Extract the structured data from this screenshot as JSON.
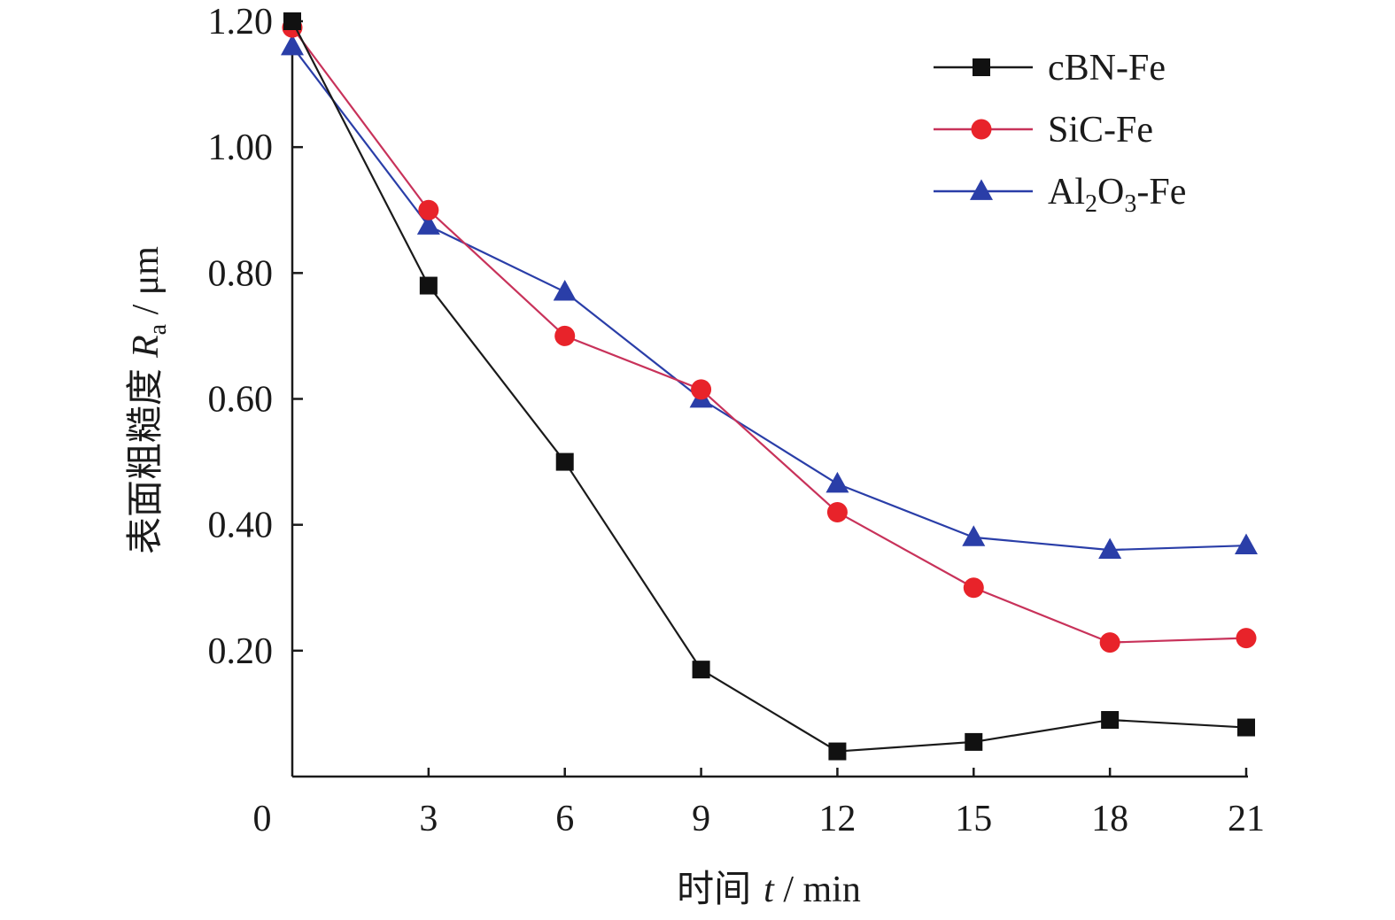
{
  "chart_data": {
    "type": "line",
    "x": [
      0,
      3,
      6,
      9,
      12,
      15,
      18,
      21
    ],
    "xlim": [
      0,
      21
    ],
    "ylim": [
      0,
      1.2
    ],
    "x_ticks": [
      "0",
      "3",
      "6",
      "9",
      "12",
      "15",
      "18",
      "21"
    ],
    "y_ticks": [
      "0.20",
      "0.40",
      "0.60",
      "0.80",
      "1.00",
      "1.20"
    ],
    "y_tick_values": [
      0.2,
      0.4,
      0.6,
      0.8,
      1.0,
      1.2
    ],
    "xlabel": {
      "cn": "时间",
      "var": "t",
      "unit": " / min"
    },
    "ylabel": {
      "cn": "表面粗糙度",
      "var": "R",
      "sub": "a",
      "unit": " / μm"
    },
    "legend_position": "top-right",
    "grid": false,
    "series": [
      {
        "name": "cBN-Fe",
        "name_parts": [
          "cBN-Fe"
        ],
        "marker": "square",
        "line_color": "#1a1a1a",
        "marker_color": "#111111",
        "values": [
          1.2,
          0.78,
          0.5,
          0.17,
          0.04,
          0.055,
          0.09,
          0.078
        ]
      },
      {
        "name": "SiC-Fe",
        "name_parts": [
          "SiC-Fe"
        ],
        "marker": "circle",
        "line_color": "#c8325a",
        "marker_color": "#e8232a",
        "values": [
          1.19,
          0.9,
          0.7,
          0.615,
          0.42,
          0.3,
          0.213,
          0.22
        ]
      },
      {
        "name": "Al2O3-Fe",
        "name_parts": [
          "Al",
          "2",
          "O",
          "3",
          "-Fe"
        ],
        "marker": "triangle",
        "line_color": "#2a3ea8",
        "marker_color": "#2a3ea8",
        "values": [
          1.16,
          0.875,
          0.77,
          0.6,
          0.465,
          0.38,
          0.36,
          0.367
        ]
      }
    ]
  }
}
